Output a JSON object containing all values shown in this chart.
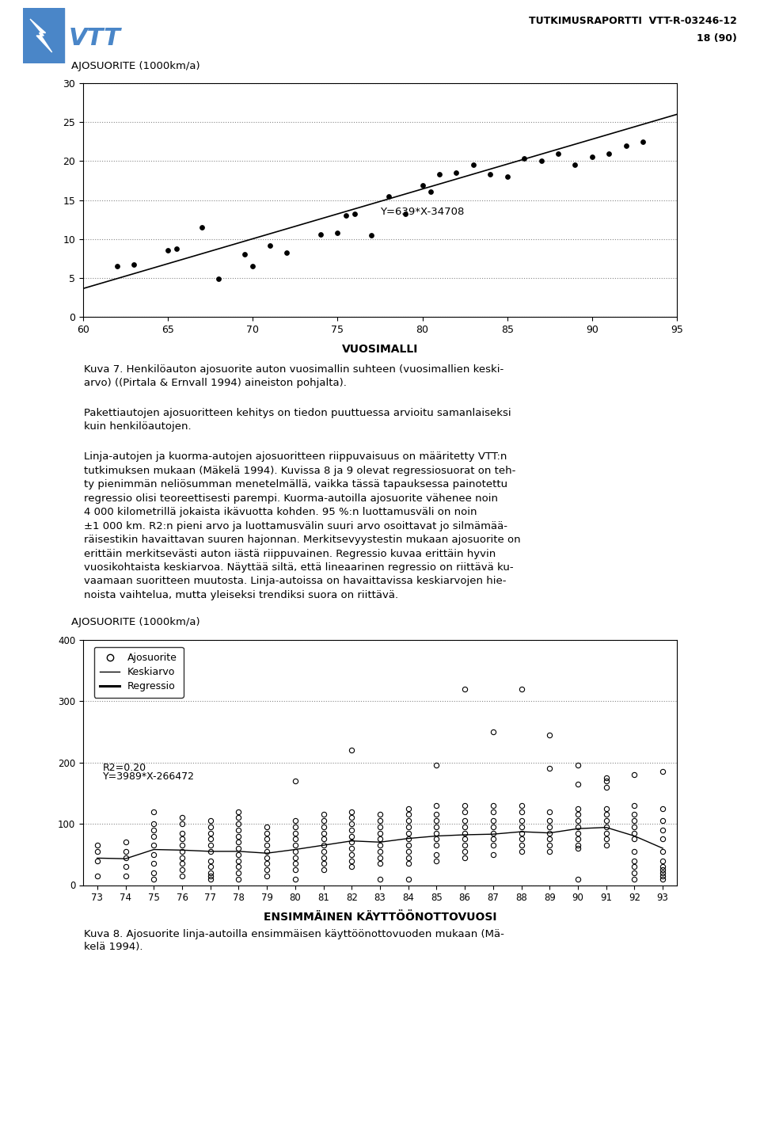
{
  "chart1": {
    "ylabel": "AJOSUORITE (1000km/a)",
    "xlabel": "VUOSIMALLI",
    "xlim": [
      60,
      95
    ],
    "ylim": [
      0,
      30
    ],
    "xticks": [
      60,
      65,
      70,
      75,
      80,
      85,
      90,
      95
    ],
    "yticks": [
      0,
      5,
      10,
      15,
      20,
      25,
      30
    ],
    "equation": "Y=639*X-34708",
    "regression_slope": 639,
    "regression_intercept": -34708,
    "scatter_x": [
      62,
      63,
      65,
      65.5,
      67,
      68,
      69.5,
      70,
      71,
      72,
      74,
      75,
      75.5,
      76,
      77,
      78,
      79,
      80,
      80.5,
      81,
      82,
      83,
      84,
      85,
      86,
      87,
      88,
      89,
      90,
      91,
      92,
      93
    ],
    "scatter_y": [
      6.5,
      6.7,
      8.5,
      8.7,
      11.5,
      4.9,
      8.0,
      6.5,
      9.2,
      8.2,
      10.6,
      10.8,
      13.0,
      13.2,
      10.5,
      15.5,
      13.2,
      16.9,
      16.1,
      18.3,
      18.5,
      19.5,
      18.3,
      18.0,
      20.3,
      20.0,
      21.0,
      19.5,
      20.5,
      21.0,
      22.0,
      22.5
    ]
  },
  "chart2": {
    "ylabel": "AJOSUORITE (1000km/a)",
    "xlabel": "ENSIMMÄINEN KÄYTTÖÖNOTTOVUOSI",
    "xlim": [
      72.5,
      93.5
    ],
    "ylim": [
      0,
      400
    ],
    "xticks": [
      73,
      74,
      75,
      76,
      77,
      78,
      79,
      80,
      81,
      82,
      83,
      84,
      85,
      86,
      87,
      88,
      89,
      90,
      91,
      92,
      93
    ],
    "yticks": [
      0,
      100,
      200,
      300,
      400
    ],
    "equation_r2": "R2=0.20",
    "equation_y": "Y=3989*X-266472",
    "regression_slope": 3989,
    "regression_intercept": -266472,
    "legend_labels": [
      "Ajosuorite",
      "Keskiarvo",
      "Regressio"
    ],
    "scatter_x": [
      73,
      73,
      73,
      73,
      74,
      74,
      74,
      74,
      74,
      75,
      75,
      75,
      75,
      75,
      75,
      75,
      75,
      75,
      76,
      76,
      76,
      76,
      76,
      76,
      76,
      76,
      76,
      76,
      77,
      77,
      77,
      77,
      77,
      77,
      77,
      77,
      77,
      77,
      77,
      78,
      78,
      78,
      78,
      78,
      78,
      78,
      78,
      78,
      78,
      78,
      78,
      79,
      79,
      79,
      79,
      79,
      79,
      79,
      79,
      79,
      80,
      80,
      80,
      80,
      80,
      80,
      80,
      80,
      80,
      80,
      80,
      81,
      81,
      81,
      81,
      81,
      81,
      81,
      81,
      81,
      81,
      82,
      82,
      82,
      82,
      82,
      82,
      82,
      82,
      82,
      82,
      82,
      83,
      83,
      83,
      83,
      83,
      83,
      83,
      83,
      83,
      83,
      84,
      84,
      84,
      84,
      84,
      84,
      84,
      84,
      84,
      84,
      84,
      85,
      85,
      85,
      85,
      85,
      85,
      85,
      85,
      85,
      85,
      86,
      86,
      86,
      86,
      86,
      86,
      86,
      86,
      86,
      86,
      87,
      87,
      87,
      87,
      87,
      87,
      87,
      87,
      87,
      88,
      88,
      88,
      88,
      88,
      88,
      88,
      88,
      88,
      89,
      89,
      89,
      89,
      89,
      89,
      89,
      89,
      89,
      90,
      90,
      90,
      90,
      90,
      90,
      90,
      90,
      90,
      90,
      90,
      91,
      91,
      91,
      91,
      91,
      91,
      91,
      91,
      91,
      91,
      92,
      92,
      92,
      92,
      92,
      92,
      92,
      92,
      92,
      92,
      92,
      92,
      93,
      93,
      93,
      93,
      93,
      93,
      93,
      93,
      93,
      93,
      93,
      93
    ],
    "scatter_y": [
      40,
      15,
      55,
      65,
      30,
      15,
      45,
      55,
      70,
      10,
      20,
      35,
      50,
      65,
      80,
      90,
      100,
      120,
      15,
      25,
      35,
      45,
      55,
      65,
      75,
      85,
      100,
      110,
      10,
      20,
      30,
      40,
      55,
      65,
      75,
      85,
      95,
      105,
      15,
      10,
      20,
      30,
      40,
      50,
      60,
      70,
      80,
      90,
      100,
      110,
      120,
      15,
      25,
      35,
      45,
      55,
      65,
      75,
      85,
      95,
      25,
      35,
      45,
      55,
      65,
      75,
      85,
      95,
      105,
      10,
      170,
      25,
      35,
      45,
      55,
      65,
      75,
      85,
      95,
      105,
      115,
      30,
      40,
      50,
      60,
      70,
      80,
      90,
      100,
      110,
      120,
      220,
      35,
      45,
      55,
      65,
      75,
      85,
      95,
      105,
      115,
      10,
      35,
      45,
      55,
      65,
      75,
      85,
      95,
      105,
      115,
      125,
      10,
      40,
      50,
      65,
      75,
      85,
      95,
      105,
      115,
      130,
      195,
      320,
      45,
      55,
      65,
      75,
      85,
      95,
      105,
      120,
      130,
      250,
      50,
      65,
      75,
      85,
      95,
      105,
      120,
      130,
      320,
      55,
      65,
      75,
      85,
      95,
      105,
      120,
      130,
      245,
      55,
      65,
      75,
      85,
      95,
      105,
      120,
      190,
      195,
      10,
      60,
      65,
      75,
      85,
      95,
      105,
      115,
      125,
      165,
      170,
      175,
      65,
      75,
      85,
      95,
      105,
      115,
      125,
      160,
      180,
      10,
      20,
      30,
      40,
      55,
      75,
      85,
      95,
      105,
      115,
      130,
      185,
      10,
      15,
      20,
      25,
      30,
      40,
      55,
      75,
      90,
      105,
      125,
      170
    ],
    "mean_data": {
      "73": 44,
      "74": 43,
      "75": 58,
      "76": 57,
      "77": 55,
      "78": 55,
      "79": 52,
      "80": 58,
      "81": 65,
      "82": 72,
      "83": 70,
      "84": 76,
      "85": 80,
      "86": 82,
      "87": 83,
      "88": 87,
      "89": 85,
      "90": 92,
      "91": 94,
      "92": 80,
      "93": 60
    }
  },
  "header_text": "TUTKIMUSRAPORTTI  VTT-R-03246-12",
  "header_page": "18 (90)",
  "caption1_line1": "Kuva 7. Henkilöauton ajosuorite auton vuosimallin suhteen (vuosimallien keski-",
  "caption1_line2": "arvo) ((Pirtala & Ernvall 1994) aineiston pohjalta).",
  "paragraph1_line1": "Pakettiautojen ajosuoritteen kehitys on tiedon puuttuessa arvioitu samanlaiseksi",
  "paragraph1_line2": "kuin henkilöautojen.",
  "paragraph2_lines": [
    "Linja-autojen ja kuorma-autojen ajosuoritteen riippuvaisuus on määritetty VTT:n",
    "tutkimuksen mukaan (Mäkelä 1994). Kuvissa 8 ja 9 olevat regressiosuorat on teh-",
    "ty pienimmän neliösumman menetelmällä, vaikka tässä tapauksessa painotettu",
    "regressio olisi teoreettisesti parempi. Kuorma-autoilla ajosuorite vähenee noin",
    "4 000 kilometrillä jokaista ikävuotta kohden. 95 %:n luottamusväli on noin",
    "±1 000 km. R2:n pieni arvo ja luottamusvälin suuri arvo osoittavat jo silmämää-",
    "räisestikin havaittavan suuren hajonnan. Merkitsevyystestin mukaan ajosuorite on",
    "erittäin merkitsevästi auton iästä riippuvainen. Regressio kuvaa erittäin hyvin",
    "vuosikohtaista keskiarvoa. Näyttää siltä, että lineaarinen regressio on riittävä ku-",
    "vaamaan suoritteen muutosta. Linja-autoissa on havaittavissa keskiarvojen hie-",
    "noista vaihtelua, mutta yleiseksi trendiksi suora on riittävä."
  ],
  "caption2_line1": "Kuva 8. Ajosuorite linja-autoilla ensimmäisen käyttöönottovuoden mukaan (Mä-",
  "caption2_line2": "kelä 1994)."
}
